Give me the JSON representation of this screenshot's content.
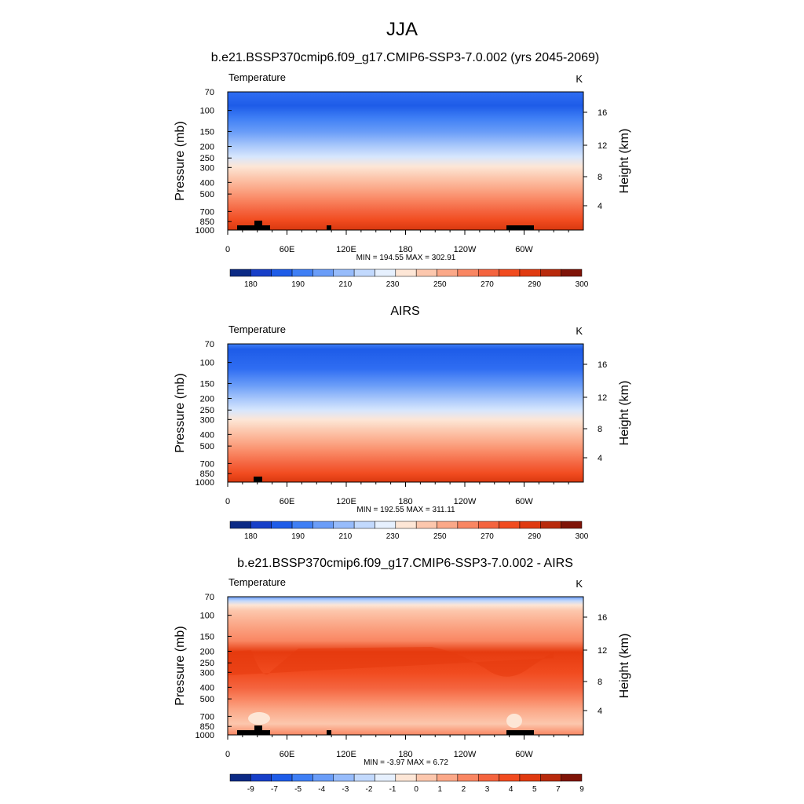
{
  "page_title": "JJA",
  "chart_data": [
    {
      "type": "heatmap",
      "title": "b.e21.BSSP370cmip6.f09_g17.CMIP6-SSP3-7.0.002 (yrs 2045-2069)",
      "left_label": "Temperature",
      "units": "K",
      "ylabel": "Pressure (mb)",
      "ylabel_right": "Height (km)",
      "pressure_ticks": [
        "70",
        "100",
        "150",
        "200",
        "250",
        "300",
        "400",
        "500",
        "700",
        "850",
        "1000"
      ],
      "height_ticks": [
        "16",
        "12",
        "8",
        "4"
      ],
      "x_ticks": [
        "0",
        "60E",
        "120E",
        "180",
        "120W",
        "60W"
      ],
      "stats": "MIN = 194.55  MAX = 302.91",
      "colorbar_ticks": [
        "180",
        "190",
        "210",
        "230",
        "250",
        "270",
        "290",
        "300"
      ],
      "colorbar_colors": [
        "#0c2a85",
        "#173fc8",
        "#1e5ce8",
        "#3f7ff5",
        "#6a9df8",
        "#97bcfb",
        "#c2d9fd",
        "#e6f0fe",
        "#fde6d6",
        "#fcc7ad",
        "#fba888",
        "#f98662",
        "#f4643f",
        "#f14b1f",
        "#e03a10",
        "#b82a0c",
        "#7f1408"
      ]
    },
    {
      "type": "heatmap",
      "title": "AIRS",
      "left_label": "Temperature",
      "units": "K",
      "ylabel": "Pressure (mb)",
      "ylabel_right": "Height (km)",
      "pressure_ticks": [
        "70",
        "100",
        "150",
        "200",
        "250",
        "300",
        "400",
        "500",
        "700",
        "850",
        "1000"
      ],
      "height_ticks": [
        "16",
        "12",
        "8",
        "4"
      ],
      "x_ticks": [
        "0",
        "60E",
        "120E",
        "180",
        "120W",
        "60W"
      ],
      "stats": "MIN = 192.55  MAX = 311.11",
      "colorbar_ticks": [
        "180",
        "190",
        "210",
        "230",
        "250",
        "270",
        "290",
        "300"
      ],
      "colorbar_colors": [
        "#0c2a85",
        "#173fc8",
        "#1e5ce8",
        "#3f7ff5",
        "#6a9df8",
        "#97bcfb",
        "#c2d9fd",
        "#e6f0fe",
        "#fde6d6",
        "#fcc7ad",
        "#fba888",
        "#f98662",
        "#f4643f",
        "#f14b1f",
        "#e03a10",
        "#b82a0c",
        "#7f1408"
      ]
    },
    {
      "type": "heatmap",
      "title": "b.e21.BSSP370cmip6.f09_g17.CMIP6-SSP3-7.0.002 - AIRS",
      "left_label": "Temperature",
      "units": "K",
      "ylabel": "Pressure (mb)",
      "ylabel_right": "Height (km)",
      "pressure_ticks": [
        "70",
        "100",
        "150",
        "200",
        "250",
        "300",
        "400",
        "500",
        "700",
        "850",
        "1000"
      ],
      "height_ticks": [
        "16",
        "12",
        "8",
        "4"
      ],
      "x_ticks": [
        "0",
        "60E",
        "120E",
        "180",
        "120W",
        "60W"
      ],
      "stats": "MIN =  -3.97  MAX =   6.72",
      "colorbar_ticks": [
        "-9",
        "-7",
        "-5",
        "-4",
        "-3",
        "-2",
        "-1",
        "0",
        "1",
        "2",
        "3",
        "4",
        "5",
        "7",
        "9"
      ],
      "colorbar_colors": [
        "#0c2a85",
        "#173fc8",
        "#1e5ce8",
        "#3f7ff5",
        "#6a9df8",
        "#97bcfb",
        "#c2d9fd",
        "#e6f0fe",
        "#fde6d6",
        "#fcc7ad",
        "#fba888",
        "#f98662",
        "#f4643f",
        "#f14b1f",
        "#e03a10",
        "#b82a0c",
        "#7f1408"
      ]
    }
  ]
}
